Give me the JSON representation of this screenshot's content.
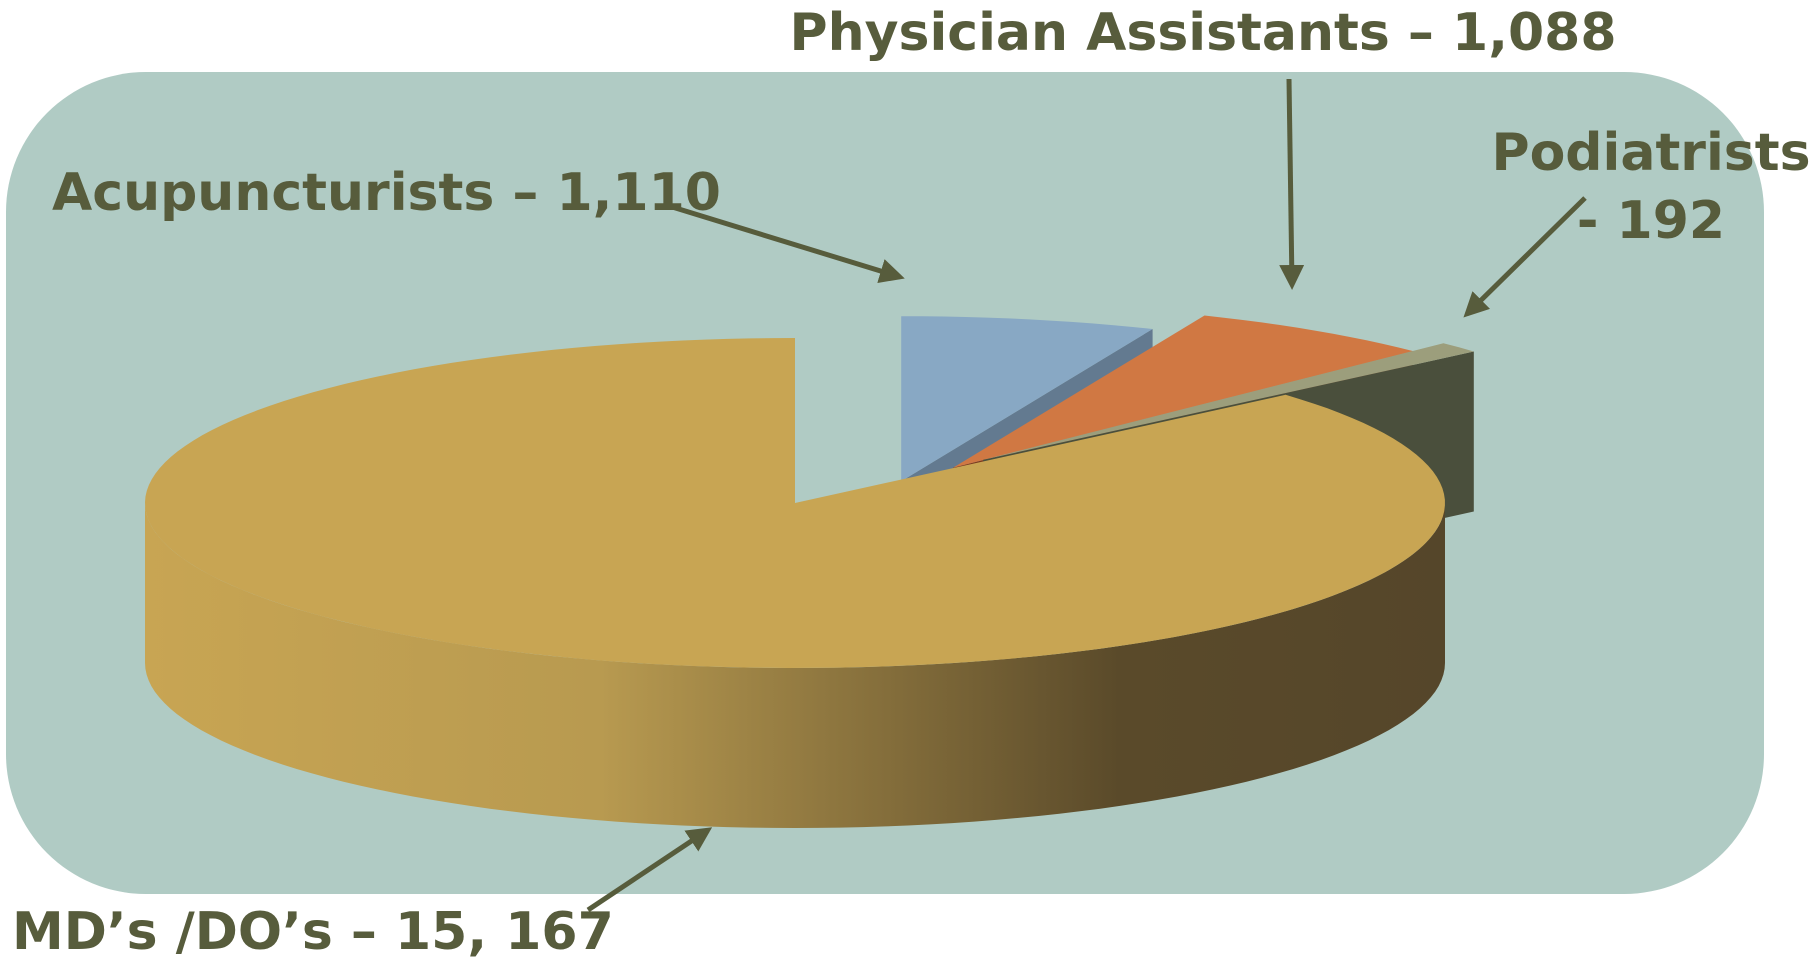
{
  "chart_data": {
    "type": "pie3d",
    "labels": [
      "Acupuncturists – 1,110",
      "Physician Assistants – 1,088",
      "Podiatrists - 192",
      "MD’s /DO’s – 15, 167"
    ],
    "values": [
      1110,
      1088,
      192,
      15167
    ],
    "colors": [
      "#88a8c4",
      "#d07843",
      "#9c9e7c",
      "#c8a553"
    ],
    "side_colors": [
      "#637a90",
      "#7a3a1e",
      "#4a4f3c",
      "#55462a"
    ]
  }
}
